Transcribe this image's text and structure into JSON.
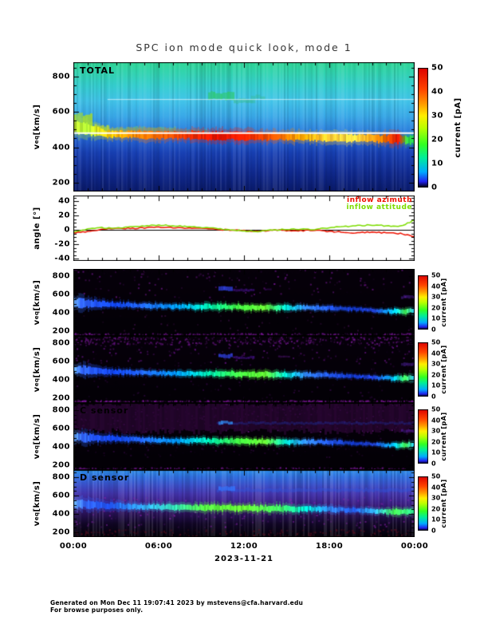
{
  "title": "SPC ion mode quick look, mode 1",
  "footer": {
    "line1": "Generated on Mon Dec 11 19:07:41 2023 by mstevens@cfa.harvard.edu",
    "line2": "For browse purposes only."
  },
  "x_axis": {
    "ticks": [
      "00:00",
      "06:00",
      "12:00",
      "18:00",
      "00:00"
    ],
    "date_label": "2023-11-21"
  },
  "v_axis_label": {
    "base": "v",
    "sub": "eq",
    "unit": " [km/s]"
  },
  "angle_axis_label": "angle [°]",
  "legend": {
    "azimuth": {
      "label": "inflow azimuth",
      "color": "#ee1100"
    },
    "attitude": {
      "label": "inflow attitude",
      "color": "#7ddd00"
    }
  },
  "colorbar": {
    "label": "current [pA]",
    "ticks": [
      0,
      10,
      20,
      30,
      40,
      50
    ],
    "range": [
      0,
      50
    ],
    "stops": [
      [
        0,
        "#000000"
      ],
      [
        0.05,
        "#2222ee"
      ],
      [
        0.13,
        "#00aaff"
      ],
      [
        0.25,
        "#00ee99"
      ],
      [
        0.36,
        "#33ff22"
      ],
      [
        0.5,
        "#bbff00"
      ],
      [
        0.6,
        "#ffee00"
      ],
      [
        0.7,
        "#ff9900"
      ],
      [
        0.82,
        "#ff4400"
      ],
      [
        1,
        "#dd0000"
      ]
    ]
  },
  "chart_data": [
    {
      "type": "heatmap",
      "label": "TOTAL",
      "ylabel": "v_eq [km/s]",
      "yticks": [
        200,
        400,
        600,
        800
      ],
      "yrange": [
        150,
        880
      ],
      "y_minor_step": 50,
      "xlabel": "2023-11-21",
      "x_ticks": [
        "00:00",
        "06:00",
        "12:00",
        "18:00",
        "00:00"
      ],
      "colorbar_ticks": [
        0,
        10,
        20,
        30,
        40,
        50
      ],
      "colorbar_range": [
        0,
        50
      ],
      "render": {
        "seed": 11,
        "stripes": 1,
        "bg": [
          [
            0,
            "#2fd896"
          ],
          [
            0.18,
            "#35cfd0"
          ],
          [
            0.3,
            "#41c4ea"
          ],
          [
            0.42,
            "#39a8e8"
          ],
          [
            0.52,
            "#2f86e0"
          ],
          [
            0.6,
            "#2360d0"
          ],
          [
            0.7,
            "#1840b4"
          ],
          [
            0.85,
            "#102a90"
          ],
          [
            1,
            "#0a1a6a"
          ]
        ],
        "speckle": [],
        "blobs": [
          [
            0,
            0.055,
            0.46,
            20,
            "#a0d830",
            0.9
          ],
          [
            0.02,
            0.1,
            0.52,
            11,
            "#c8e820",
            0.75
          ],
          [
            0.07,
            0.3,
            0.525,
            7,
            "#7fd455",
            0.45
          ],
          [
            0.3,
            0.395,
            0.535,
            5,
            "#6fcc60",
            0.3
          ],
          [
            0.395,
            0.47,
            0.26,
            9,
            "#2fca70",
            0.85
          ],
          [
            0.47,
            0.53,
            0.3,
            5,
            "#35bb80",
            0.5
          ],
          [
            0.52,
            0.56,
            0.27,
            4,
            "#35bb80",
            0.4
          ]
        ],
        "band": [
          [
            0,
            0.5,
            16,
            "#b8e030"
          ],
          [
            0.04,
            0.52,
            12,
            "#aaee33"
          ],
          [
            0.1,
            0.555,
            9,
            "#ffcc00"
          ],
          [
            0.17,
            0.56,
            9,
            "#ff8800"
          ],
          [
            0.25,
            0.565,
            9,
            "#ff6600"
          ],
          [
            0.33,
            0.565,
            9,
            "#ff3300"
          ],
          [
            0.42,
            0.57,
            10,
            "#ee1100"
          ],
          [
            0.5,
            0.57,
            10,
            "#ff2200"
          ],
          [
            0.58,
            0.575,
            9,
            "#ff5500"
          ],
          [
            0.67,
            0.575,
            9,
            "#ffaa00"
          ],
          [
            0.75,
            0.58,
            9,
            "#ffcc33"
          ],
          [
            0.82,
            0.585,
            9,
            "#ffdd44"
          ],
          [
            0.9,
            0.59,
            9,
            "#ff8800"
          ],
          [
            0.95,
            0.59,
            11,
            "#ee1100"
          ],
          [
            0.975,
            0.6,
            10,
            "#33dd44"
          ],
          [
            1,
            0.6,
            10,
            "#22cc55"
          ]
        ],
        "white_lines": [
          [
            0.542,
            0,
            1,
            0.95,
            2
          ],
          [
            0.285,
            0.1,
            1,
            0.65,
            1
          ]
        ]
      }
    },
    {
      "type": "line",
      "label": "",
      "ylabel": "angle [°]",
      "yticks": [
        -40,
        -20,
        0,
        20,
        40
      ],
      "yrange": [
        -43,
        48
      ],
      "y_minor_step": 5,
      "x_hours": [
        0,
        1,
        2,
        3,
        4,
        5,
        6,
        7,
        8,
        9,
        10,
        11,
        12,
        13,
        14,
        15,
        16,
        17,
        18,
        19,
        20,
        21,
        22,
        23,
        24
      ],
      "series": [
        {
          "name": "inflow azimuth",
          "color": "#ee1100",
          "values": [
            -4,
            -2,
            1,
            3,
            2,
            3,
            4,
            3,
            3,
            2,
            1,
            0,
            -1,
            -2,
            0,
            -1,
            -1,
            0,
            -2,
            -3,
            -4,
            -3,
            -4,
            -5,
            -9
          ]
        },
        {
          "name": "inflow attitude",
          "color": "#7ddd00",
          "values": [
            -2,
            1,
            3,
            3,
            4,
            6,
            7,
            6,
            5,
            4,
            2,
            0,
            -1,
            -2,
            0,
            1,
            1,
            1,
            3,
            5,
            6,
            7,
            6,
            5,
            14
          ]
        }
      ]
    },
    {
      "type": "heatmap",
      "label": "",
      "ylabel": "v_eq [km/s]",
      "yticks": [
        200,
        400,
        600,
        800
      ],
      "yrange": [
        150,
        880
      ],
      "y_minor_step": 50,
      "colorbar_ticks": [
        0,
        10,
        20,
        30,
        40,
        50
      ],
      "colorbar_range": [
        0,
        50
      ],
      "render": {
        "seed": 21,
        "stripes": 0,
        "bg": [
          [
            0,
            "#06000a"
          ],
          [
            1,
            "#030006"
          ]
        ],
        "speckle": [
          [
            "#7a1898",
            0.35,
            0,
            0.42
          ],
          [
            "#45104f",
            0.2,
            0.45,
            0.92
          ],
          [
            "#7a1898",
            1.2,
            0.955,
            1
          ]
        ],
        "blobs": [
          [
            0.425,
            0.465,
            0.295,
            5,
            "#3344ee",
            0.9
          ],
          [
            0.468,
            0.53,
            0.32,
            3,
            "#441188",
            0.8
          ],
          [
            0.56,
            0.58,
            0.31,
            2,
            "#330a55",
            0.8
          ],
          [
            0.96,
            1,
            0.42,
            4,
            "#5522aa",
            0.55
          ]
        ],
        "band": [
          [
            0,
            0.5,
            9,
            "#66aaff"
          ],
          [
            0.02,
            0.51,
            11,
            "#3366ff"
          ],
          [
            0.06,
            0.52,
            8,
            "#2255ff"
          ],
          [
            0.12,
            0.535,
            6,
            "#1144ee"
          ],
          [
            0.2,
            0.55,
            5,
            "#2266ff"
          ],
          [
            0.3,
            0.56,
            5,
            "#0099ff"
          ],
          [
            0.4,
            0.565,
            6,
            "#00eeaa"
          ],
          [
            0.48,
            0.57,
            6,
            "#44ff44"
          ],
          [
            0.56,
            0.575,
            6,
            "#66ff33"
          ],
          [
            0.62,
            0.58,
            6,
            "#00ddcc"
          ],
          [
            0.68,
            0.58,
            5,
            "#3388ff"
          ],
          [
            0.75,
            0.585,
            5,
            "#2255ee"
          ],
          [
            0.82,
            0.6,
            4,
            "#1133bb"
          ],
          [
            0.88,
            0.62,
            4,
            "#2244dd"
          ],
          [
            0.94,
            0.63,
            5,
            "#00ccff"
          ],
          [
            0.97,
            0.635,
            6,
            "#44ff55"
          ],
          [
            1,
            0.62,
            6,
            "#22aaff"
          ]
        ],
        "white_lines": []
      }
    },
    {
      "type": "heatmap",
      "label": "",
      "ylabel": "v_eq [km/s]",
      "yticks": [
        200,
        400,
        600,
        800
      ],
      "yrange": [
        150,
        880
      ],
      "y_minor_step": 50,
      "colorbar_ticks": [
        0,
        10,
        20,
        30,
        40,
        50
      ],
      "colorbar_range": [
        0,
        50
      ],
      "render": {
        "seed": 22,
        "stripes": 0,
        "bg": [
          [
            0,
            "#06000a"
          ],
          [
            1,
            "#030006"
          ]
        ],
        "speckle": [
          [
            "#6f1590",
            0.55,
            0,
            0.4
          ],
          [
            "#7a1898",
            0.9,
            0,
            0.12
          ],
          [
            "#3c0a50",
            0.35,
            0.4,
            0.95
          ],
          [
            "#8a1aa8",
            1.6,
            0.955,
            1
          ]
        ],
        "blobs": [
          [
            0.425,
            0.465,
            0.295,
            5,
            "#3344ee",
            0.9
          ],
          [
            0.468,
            0.53,
            0.32,
            3,
            "#441188",
            0.8
          ],
          [
            0.6,
            0.63,
            0.3,
            2,
            "#44105f",
            0.7
          ],
          [
            0.96,
            1,
            0.42,
            4,
            "#5522aa",
            0.55
          ]
        ],
        "band": [
          [
            0,
            0.5,
            9,
            "#66aaff"
          ],
          [
            0.02,
            0.51,
            11,
            "#3366ff"
          ],
          [
            0.06,
            0.52,
            8,
            "#2255ff"
          ],
          [
            0.12,
            0.535,
            6,
            "#1144ee"
          ],
          [
            0.2,
            0.55,
            5,
            "#2266ff"
          ],
          [
            0.3,
            0.56,
            5,
            "#0099ff"
          ],
          [
            0.4,
            0.565,
            6,
            "#00eeaa"
          ],
          [
            0.48,
            0.57,
            6,
            "#44ff44"
          ],
          [
            0.56,
            0.575,
            6,
            "#66ff33"
          ],
          [
            0.62,
            0.58,
            6,
            "#00ddcc"
          ],
          [
            0.68,
            0.58,
            5,
            "#3388ff"
          ],
          [
            0.75,
            0.585,
            5,
            "#2255ee"
          ],
          [
            0.82,
            0.6,
            4,
            "#1133bb"
          ],
          [
            0.88,
            0.62,
            4,
            "#2244dd"
          ],
          [
            0.94,
            0.63,
            5,
            "#00ccff"
          ],
          [
            0.97,
            0.635,
            6,
            "#44ff55"
          ],
          [
            1,
            0.62,
            6,
            "#22aaff"
          ]
        ],
        "white_lines": []
      }
    },
    {
      "type": "heatmap",
      "label": "C sensor",
      "ylabel": "v_eq [km/s]",
      "yticks": [
        200,
        400,
        600,
        800
      ],
      "yrange": [
        150,
        880
      ],
      "y_minor_step": 50,
      "colorbar_ticks": [
        0,
        10,
        20,
        30,
        40,
        50
      ],
      "colorbar_range": [
        0,
        50
      ],
      "render": {
        "seed": 23,
        "stripes": 0,
        "bg": [
          [
            0,
            "#06000a"
          ],
          [
            1,
            "#030006"
          ]
        ],
        "speckle": [
          [
            "#7a1898",
            1.5,
            0,
            0.43
          ],
          [
            "#30083e",
            0.3,
            0.45,
            0.8
          ],
          [
            "#7a1898",
            0.8,
            0.955,
            1
          ]
        ],
        "blobs": [
          [
            0,
            1,
            0.215,
            36,
            "#26052f",
            1
          ],
          [
            0.42,
            1,
            0.3,
            3,
            "#2233aa",
            0.45
          ],
          [
            0.425,
            0.465,
            0.29,
            4,
            "#3399ff",
            0.85
          ],
          [
            0.96,
            1,
            0.42,
            4,
            "#5522aa",
            0.55
          ]
        ],
        "band": [
          [
            0,
            0.5,
            9,
            "#66aaff"
          ],
          [
            0.02,
            0.51,
            11,
            "#3366ff"
          ],
          [
            0.06,
            0.52,
            8,
            "#2255ff"
          ],
          [
            0.12,
            0.535,
            6,
            "#1144ee"
          ],
          [
            0.2,
            0.55,
            5,
            "#2266ff"
          ],
          [
            0.3,
            0.56,
            5,
            "#0099ff"
          ],
          [
            0.4,
            0.565,
            6,
            "#00eeaa"
          ],
          [
            0.48,
            0.57,
            6,
            "#44ff44"
          ],
          [
            0.56,
            0.575,
            6,
            "#66ff33"
          ],
          [
            0.62,
            0.58,
            6,
            "#00ddcc"
          ],
          [
            0.68,
            0.58,
            5,
            "#3388ff"
          ],
          [
            0.75,
            0.585,
            5,
            "#2255ee"
          ],
          [
            0.82,
            0.6,
            4,
            "#1133bb"
          ],
          [
            0.88,
            0.62,
            4,
            "#2244dd"
          ],
          [
            0.94,
            0.63,
            5,
            "#00ccff"
          ],
          [
            0.97,
            0.635,
            6,
            "#44ff55"
          ],
          [
            1,
            0.62,
            6,
            "#22aaff"
          ]
        ],
        "white_lines": []
      }
    },
    {
      "type": "heatmap",
      "label": "D sensor",
      "ylabel": "v_eq [km/s]",
      "yticks": [
        200,
        400,
        600,
        800
      ],
      "yrange": [
        150,
        880
      ],
      "y_minor_step": 50,
      "colorbar_ticks": [
        0,
        10,
        20,
        30,
        40,
        50
      ],
      "colorbar_range": [
        0,
        50
      ],
      "render": {
        "seed": 24,
        "stripes": 1.2,
        "bg": [
          [
            0,
            "#2e8fe8"
          ],
          [
            0.1,
            "#2f6fe0"
          ],
          [
            0.22,
            "#3b52cc"
          ],
          [
            0.35,
            "#4436b0"
          ],
          [
            0.5,
            "#3c1f86"
          ],
          [
            0.65,
            "#2a1258"
          ],
          [
            0.8,
            "#120728"
          ],
          [
            1,
            "#030108"
          ]
        ],
        "speckle": [
          [
            "#8822aa",
            0.5,
            0.4,
            0.85
          ],
          [
            "#5c1020",
            0.7,
            0.88,
            1
          ]
        ],
        "blobs": [
          [
            0.42,
            1,
            0.3,
            4,
            "#2f55dd",
            0.5
          ],
          [
            0.425,
            0.47,
            0.28,
            5,
            "#3377ff",
            0.8
          ]
        ],
        "band": [
          [
            0,
            0.5,
            9,
            "#66aaff"
          ],
          [
            0.03,
            0.51,
            10,
            "#3366ff"
          ],
          [
            0.1,
            0.535,
            7,
            "#2255ff"
          ],
          [
            0.2,
            0.55,
            6,
            "#33aaff"
          ],
          [
            0.3,
            0.555,
            6,
            "#33ddaa"
          ],
          [
            0.38,
            0.56,
            7,
            "#55ff44"
          ],
          [
            0.5,
            0.57,
            7,
            "#66ff33"
          ],
          [
            0.6,
            0.575,
            7,
            "#44ff66"
          ],
          [
            0.68,
            0.58,
            6,
            "#00ddcc"
          ],
          [
            0.75,
            0.585,
            6,
            "#3388ff"
          ],
          [
            0.82,
            0.6,
            5,
            "#2255dd"
          ],
          [
            0.88,
            0.615,
            5,
            "#33bbff"
          ],
          [
            0.94,
            0.625,
            6,
            "#44ff55"
          ],
          [
            1,
            0.62,
            6,
            "#33ffaa"
          ]
        ],
        "white_lines": []
      }
    }
  ]
}
